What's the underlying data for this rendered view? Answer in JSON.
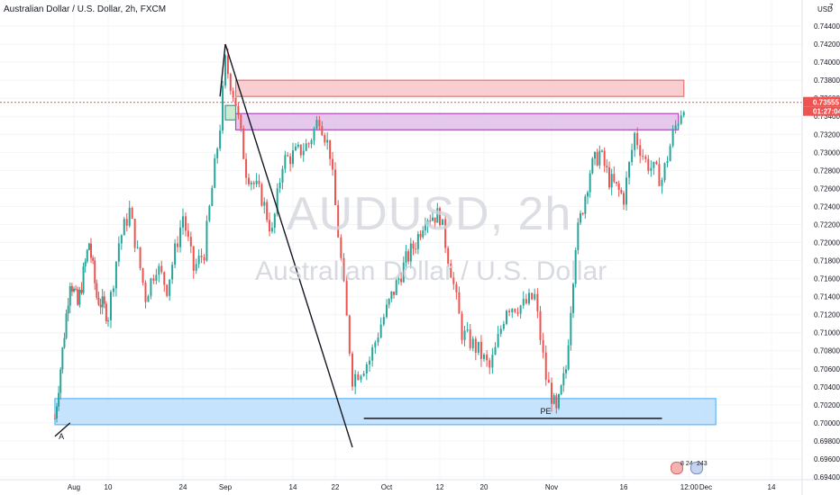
{
  "header": {
    "title": "Australian Dollar / U.S. Dollar, 2h, FXCM"
  },
  "watermark": {
    "symbol": "AUDUSD, 2h",
    "name": "Australian Dollar / U.S. Dollar"
  },
  "price_scale": {
    "currency": "USD",
    "top_label": "7"
  },
  "price_badge": {
    "price": "0.73555",
    "countdown": "01:27:04"
  },
  "events": {
    "e1": "8 24",
    "e2": "243"
  },
  "colors": {
    "up": "#26a69a",
    "down": "#ef5350",
    "price_line": "#ef5350"
  },
  "chart_data": {
    "type": "candlestick",
    "title": "",
    "ylim": [
      0.6937,
      0.7465
    ],
    "y_ticks": [
      "0.74400",
      "0.74200",
      "0.74000",
      "0.73800",
      "0.73600",
      "0.73400",
      "0.73200",
      "0.73000",
      "0.72800",
      "0.72600",
      "0.72400",
      "0.72200",
      "0.72000",
      "0.71800",
      "0.71600",
      "0.71400",
      "0.71200",
      "0.71000",
      "0.70800",
      "0.70600",
      "0.70400",
      "0.70200",
      "0.70000",
      "0.69800",
      "0.69600",
      "0.69400"
    ],
    "x_ticks": [
      "Aug",
      "10",
      "24",
      "Sep",
      "14",
      "22",
      "Oct",
      "12",
      "20",
      "Nov",
      "16",
      "12:00",
      "Dec",
      "14"
    ],
    "last_price": 0.73555,
    "price_path": [
      {
        "date": "Jul 27",
        "price": 0.7005
      },
      {
        "date": "Jul 29",
        "price": 0.708
      },
      {
        "date": "Jul 31",
        "price": 0.716
      },
      {
        "date": "Aug 2",
        "price": 0.713
      },
      {
        "date": "Aug 5",
        "price": 0.72
      },
      {
        "date": "Aug 7",
        "price": 0.714
      },
      {
        "date": "Aug 10",
        "price": 0.712
      },
      {
        "date": "Aug 12",
        "price": 0.72
      },
      {
        "date": "Aug 14",
        "price": 0.7235
      },
      {
        "date": "Aug 17",
        "price": 0.714
      },
      {
        "date": "Aug 19",
        "price": 0.7175
      },
      {
        "date": "Aug 21",
        "price": 0.715
      },
      {
        "date": "Aug 24",
        "price": 0.723
      },
      {
        "date": "Aug 26",
        "price": 0.717
      },
      {
        "date": "Aug 28",
        "price": 0.719
      },
      {
        "date": "Aug 31",
        "price": 0.733
      },
      {
        "date": "Sep 1",
        "price": 0.74
      },
      {
        "date": "Sep 3",
        "price": 0.7355
      },
      {
        "date": "Sep 5",
        "price": 0.728
      },
      {
        "date": "Sep 8",
        "price": 0.725
      },
      {
        "date": "Sep 10",
        "price": 0.721
      },
      {
        "date": "Sep 12",
        "price": 0.729
      },
      {
        "date": "Sep 15",
        "price": 0.73
      },
      {
        "date": "Sep 17",
        "price": 0.731
      },
      {
        "date": "Sep 19",
        "price": 0.734
      },
      {
        "date": "Sep 21",
        "price": 0.73
      },
      {
        "date": "Sep 23",
        "price": 0.718
      },
      {
        "date": "Sep 25",
        "price": 0.705
      },
      {
        "date": "Sep 28",
        "price": 0.707
      },
      {
        "date": "Sep 30",
        "price": 0.711
      },
      {
        "date": "Oct 2",
        "price": 0.714
      },
      {
        "date": "Oct 5",
        "price": 0.718
      },
      {
        "date": "Oct 7",
        "price": 0.72
      },
      {
        "date": "Oct 9",
        "price": 0.723
      },
      {
        "date": "Oct 12",
        "price": 0.723
      },
      {
        "date": "Oct 14",
        "price": 0.717
      },
      {
        "date": "Oct 16",
        "price": 0.71
      },
      {
        "date": "Oct 19",
        "price": 0.708
      },
      {
        "date": "Oct 21",
        "price": 0.706
      },
      {
        "date": "Oct 22",
        "price": 0.708
      },
      {
        "date": "Oct 24",
        "price": 0.713
      },
      {
        "date": "Oct 27",
        "price": 0.713
      },
      {
        "date": "Oct 29",
        "price": 0.714
      },
      {
        "date": "Oct 31",
        "price": 0.705
      },
      {
        "date": "Nov 2",
        "price": 0.701
      },
      {
        "date": "Nov 4",
        "price": 0.706
      },
      {
        "date": "Nov 6",
        "price": 0.72
      },
      {
        "date": "Nov 9",
        "price": 0.728
      },
      {
        "date": "Nov 11",
        "price": 0.73
      },
      {
        "date": "Nov 13",
        "price": 0.727
      },
      {
        "date": "Nov 16",
        "price": 0.725
      },
      {
        "date": "Nov 18",
        "price": 0.732
      },
      {
        "date": "Nov 20",
        "price": 0.729
      },
      {
        "date": "Nov 23",
        "price": 0.727
      },
      {
        "date": "Nov 25",
        "price": 0.732
      },
      {
        "date": "Nov 27",
        "price": 0.7355
      }
    ],
    "zones": [
      {
        "name": "supply-zone",
        "from_date": "Sep 3",
        "to_date": "Nov 27",
        "top": 0.738,
        "bottom": 0.7362,
        "color": "#f7c6c8",
        "border": "#e57373"
      },
      {
        "name": "resistance-zone",
        "from_date": "Sep 3",
        "to_date": "Nov 26",
        "top": 0.7343,
        "bottom": 0.7325,
        "color": "#e1bee7",
        "border": "#ab47bc"
      },
      {
        "name": "demand-zone",
        "from_date": "Jul 27",
        "to_date": "Dec 3",
        "top": 0.7027,
        "bottom": 0.6998,
        "color": "#bbdefb",
        "border": "#64b5f6"
      },
      {
        "name": "small-zone",
        "from_date": "Sep 1",
        "to_date": "Sep 3",
        "top": 0.7352,
        "bottom": 0.7336,
        "color": "#c8e6c9",
        "border": "#26a69a"
      }
    ],
    "lines": [
      {
        "name": "trend-line-long",
        "x1_date": "Sep 1",
        "y1": 0.742,
        "x2_date": "Sep 25",
        "y2": 0.6973
      },
      {
        "name": "trend-line-short",
        "x1_date": "Sep 1",
        "y1": 0.742,
        "x2_date": "Aug 31",
        "y2": 0.7362
      },
      {
        "name": "pe-line",
        "x1_date": "Sep 27",
        "y1": 0.7005,
        "x2_date": "Nov 23",
        "y2": 0.7005
      },
      {
        "name": "left-line",
        "x1_date": "Jul 27",
        "y1": 0.6985,
        "x2_date": "Jul 31",
        "y2": 0.7
      }
    ],
    "annotations": [
      {
        "name": "pe-label",
        "text": "PE",
        "date": "Oct 30",
        "price": 0.701
      },
      {
        "name": "a-label",
        "text": "A",
        "date": "Jul 28",
        "price": 0.6982
      }
    ]
  }
}
